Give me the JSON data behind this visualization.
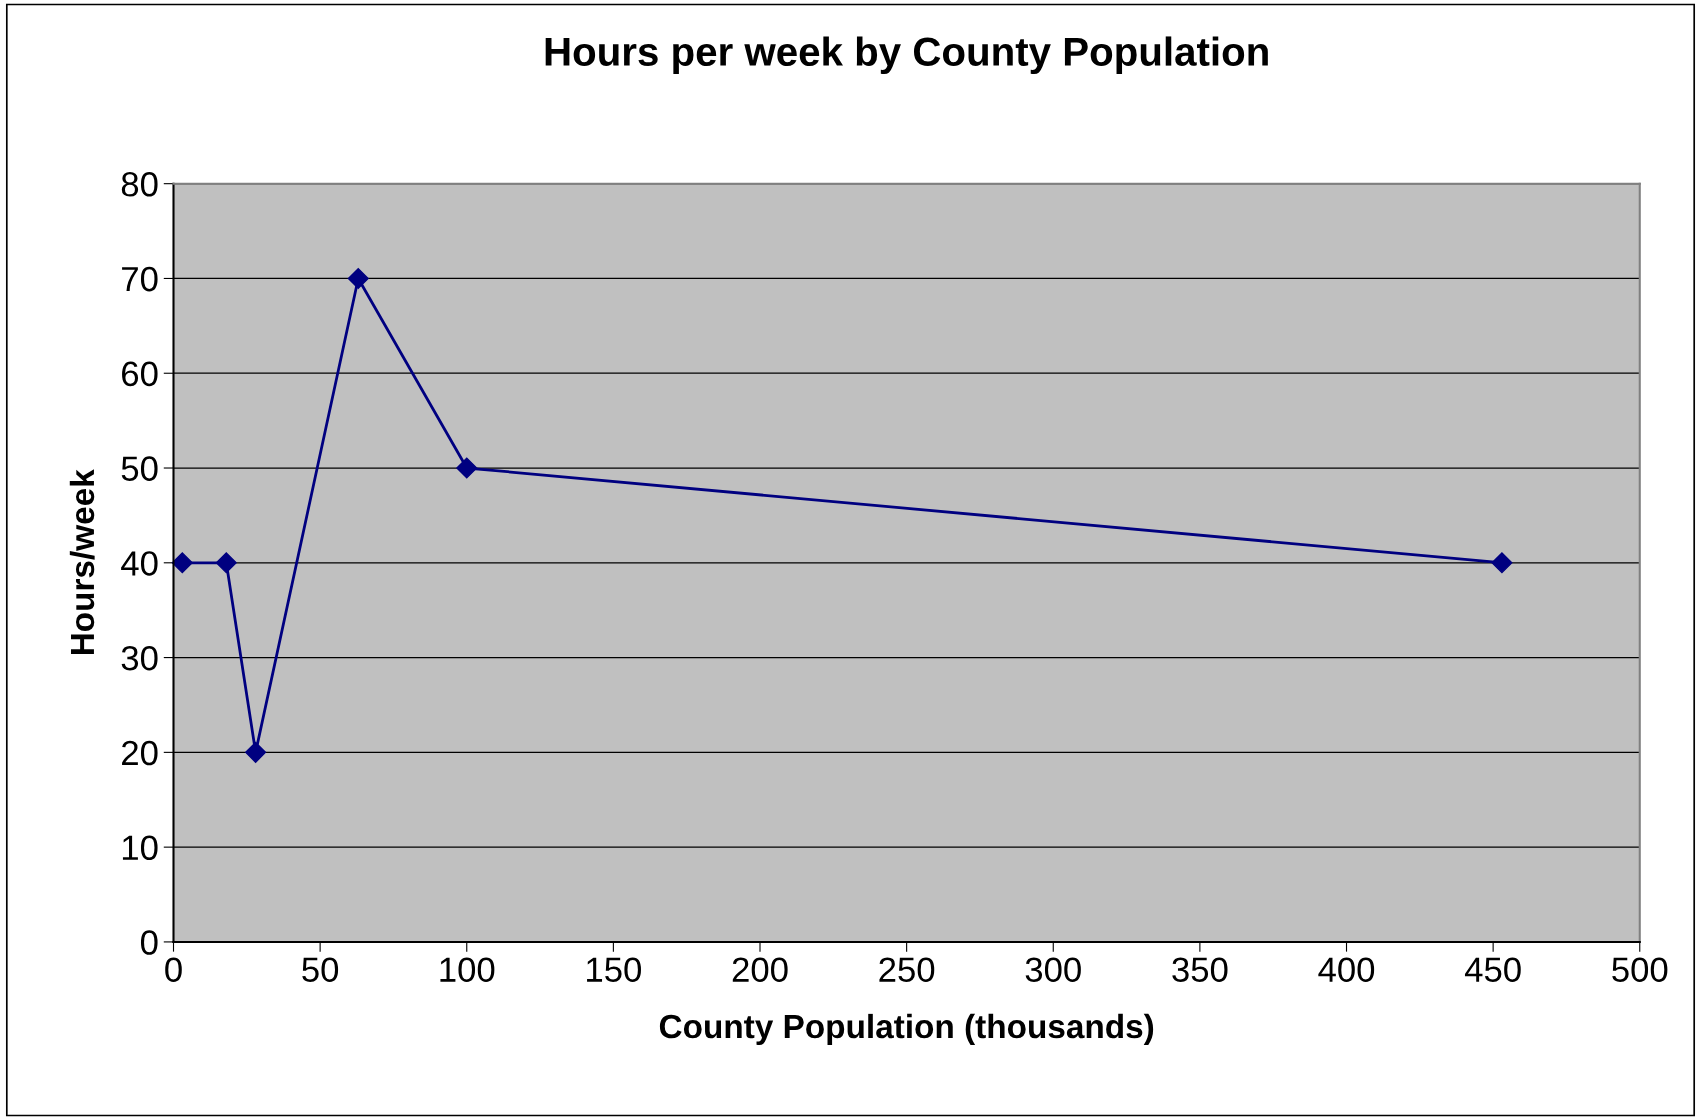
{
  "chart_data": {
    "type": "line",
    "title": "Hours per week by County Population",
    "xlabel": "County Population (thousands)",
    "ylabel": "Hours/week",
    "x": [
      3,
      18,
      28,
      63,
      100,
      453
    ],
    "series": [
      {
        "color": "#000080",
        "values": [
          40,
          40,
          20,
          70,
          50,
          40
        ]
      }
    ],
    "xlim": [
      0,
      500
    ],
    "xticks": [
      0,
      50,
      100,
      150,
      200,
      250,
      300,
      350,
      400,
      450,
      500
    ],
    "ylim": [
      0,
      80
    ],
    "yticks": [
      0,
      10,
      20,
      30,
      40,
      50,
      60,
      70,
      80
    ],
    "grid": "y",
    "legend": false,
    "marker": "diamond",
    "line_style": "solid"
  }
}
